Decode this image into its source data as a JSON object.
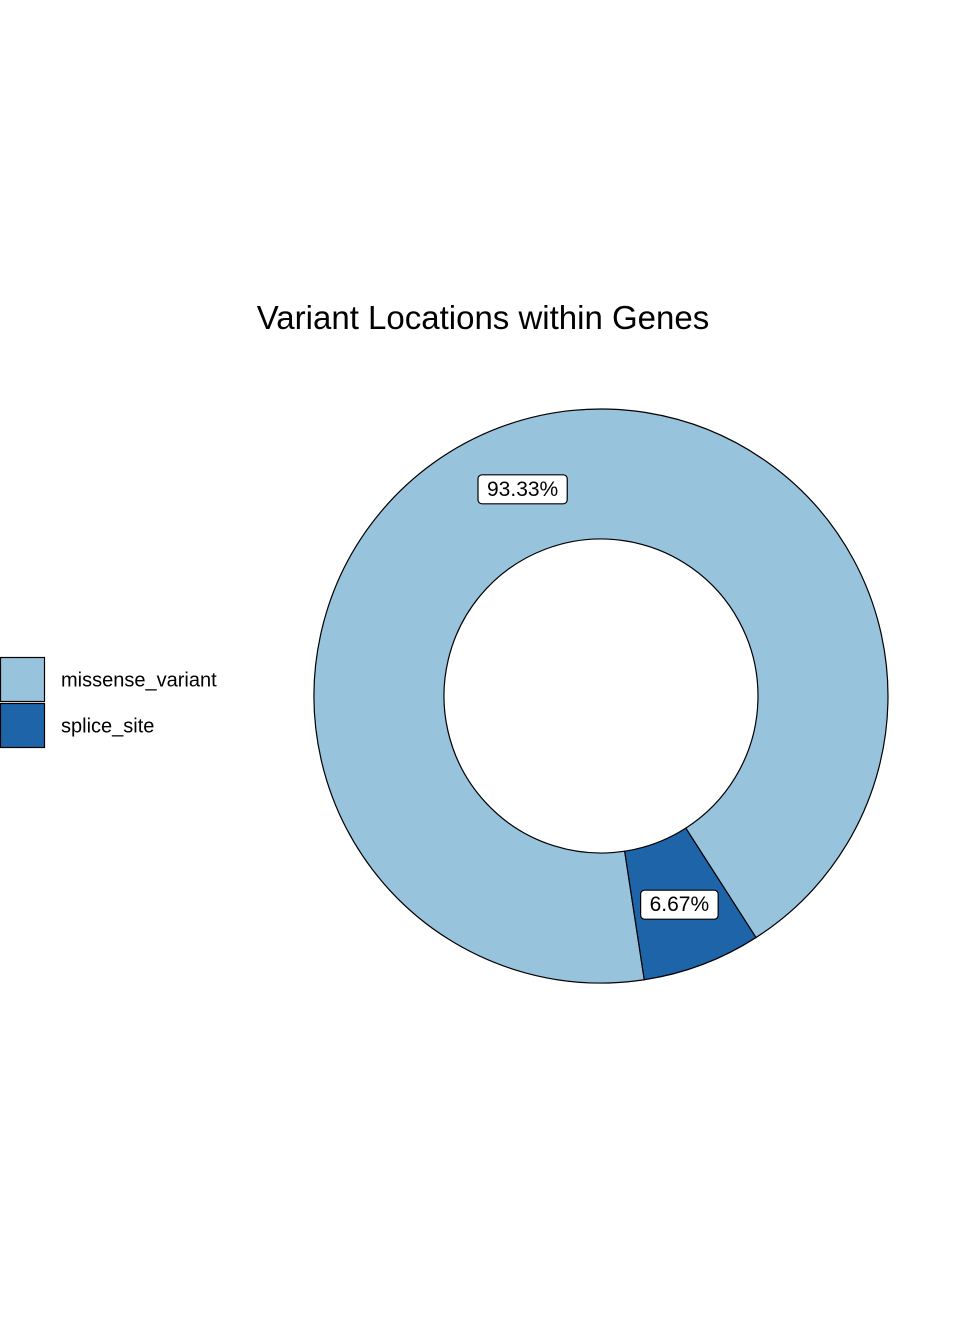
{
  "chart_data": {
    "type": "pie",
    "donut": true,
    "title": "Variant Locations within Genes",
    "legend_position": "left",
    "slices": [
      {
        "label": "missense_variant",
        "value": 93.33,
        "value_label": "93.33%",
        "color": "#97C3DC"
      },
      {
        "label": "splice_site",
        "value": 6.67,
        "value_label": "6.67%",
        "color": "#1E64A8"
      }
    ]
  }
}
